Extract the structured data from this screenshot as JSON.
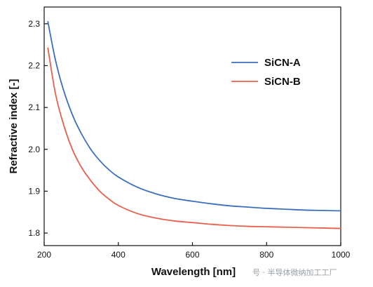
{
  "chart_data": {
    "type": "line",
    "xlabel": "Wavelength [nm]",
    "ylabel": "Refractive index [-]",
    "xlim": [
      200,
      1000
    ],
    "ylim": [
      1.77,
      2.34
    ],
    "xticks": [
      200,
      400,
      600,
      800,
      1000
    ],
    "yticks": [
      1.8,
      1.9,
      2.0,
      2.1,
      2.2,
      2.3
    ],
    "xtick_labels": [
      "200",
      "400",
      "600",
      "800",
      "1000"
    ],
    "ytick_labels": [
      "1.8",
      "1.9",
      "2.0",
      "2.1",
      "2.2",
      "2.3"
    ],
    "grid": false,
    "legend_position": "upper-right",
    "series": [
      {
        "name": "SiCN-A",
        "color": "#3b6fbe",
        "x": [
          210,
          230,
          250,
          275,
          300,
          325,
          350,
          375,
          400,
          450,
          500,
          550,
          600,
          650,
          700,
          750,
          800,
          850,
          900,
          950,
          1000
        ],
        "y": [
          2.305,
          2.215,
          2.148,
          2.085,
          2.038,
          2.001,
          1.973,
          1.951,
          1.934,
          1.91,
          1.894,
          1.883,
          1.876,
          1.87,
          1.865,
          1.862,
          1.859,
          1.857,
          1.855,
          1.854,
          1.853
        ]
      },
      {
        "name": "SiCN-B",
        "color": "#e8604c",
        "x": [
          210,
          230,
          250,
          275,
          300,
          325,
          350,
          375,
          400,
          450,
          500,
          550,
          600,
          650,
          700,
          750,
          800,
          850,
          900,
          950,
          1000
        ],
        "y": [
          2.242,
          2.135,
          2.066,
          2.002,
          1.958,
          1.926,
          1.9,
          1.881,
          1.866,
          1.847,
          1.836,
          1.829,
          1.825,
          1.821,
          1.818,
          1.816,
          1.815,
          1.814,
          1.813,
          1.812,
          1.811
        ]
      }
    ]
  },
  "watermark": "号 · 半导体微纳加工工厂"
}
